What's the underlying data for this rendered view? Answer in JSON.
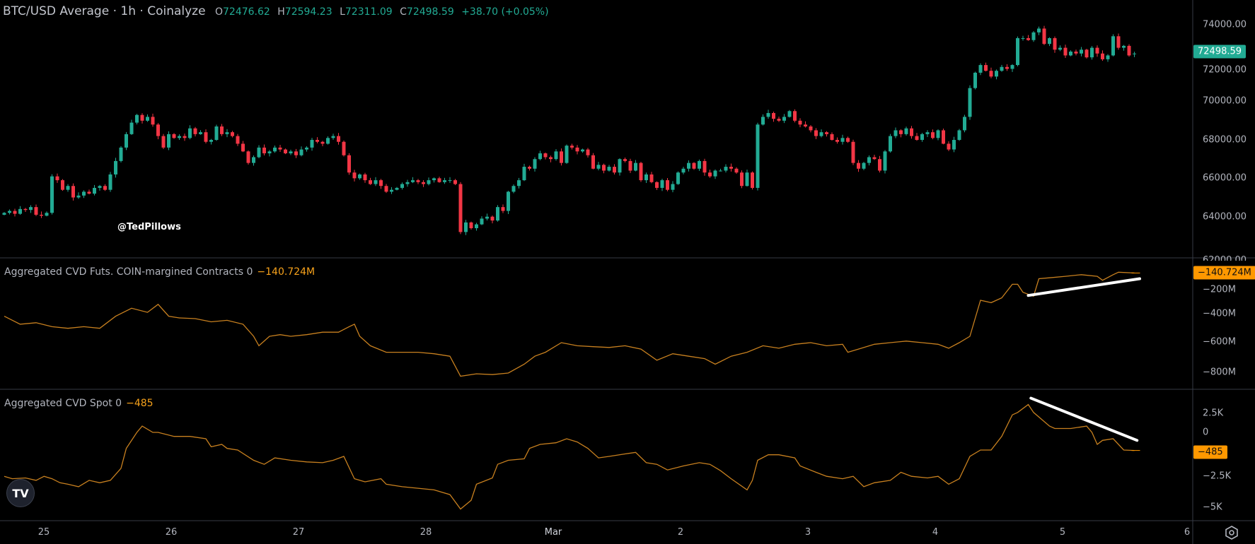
{
  "header": {
    "symbol": "BTC/USD Average · 1h · Coinalyze",
    "open_label": "O",
    "open": "72476.62",
    "high_label": "H",
    "high": "72594.23",
    "low_label": "L",
    "low": "72311.09",
    "close_label": "C",
    "close": "72498.59",
    "change": "+38.70 (+0.05%)"
  },
  "watermark": "@TedPillows",
  "colors": {
    "up": "#22ab94",
    "down": "#f23645",
    "cvd": "#c8801f",
    "tag_orange": "#ff9800",
    "annotation": "#ffffff"
  },
  "panes": {
    "futures": {
      "name": "Aggregated CVD Futs. COIN-margined Contracts 0",
      "value": "−140.724M"
    },
    "spot": {
      "name": "Aggregated CVD Spot 0",
      "value": "−485"
    }
  },
  "axes": {
    "price_ticks": [
      "74000.00",
      "72000.00",
      "70000.00",
      "68000.00",
      "66000.00",
      "64000.00",
      "62000.00"
    ],
    "price_tag": "72498.59",
    "futures_ticks": [
      "−200M",
      "−400M",
      "−600M",
      "−800M"
    ],
    "futures_tag": "−140.724M",
    "spot_ticks": [
      "2.5K",
      "0",
      "−2.5K",
      "−5K"
    ],
    "spot_tag": "−485",
    "time_labels": [
      "25",
      "26",
      "27",
      "28",
      "Mar",
      "2",
      "3",
      "4",
      "5",
      "6"
    ]
  },
  "chart_data": [
    {
      "type": "candlestick",
      "title": "BTC/USD Average · 1h",
      "ylim": [
        62000,
        74000
      ],
      "first_open": 64100,
      "last_ohlc": [
        72476.62,
        72594.23,
        72311.09,
        72498.59
      ],
      "closes": [
        64200,
        64300,
        64150,
        64400,
        64350,
        64500,
        64100,
        64050,
        64200,
        66100,
        65900,
        65400,
        65600,
        65000,
        65100,
        65300,
        65200,
        65500,
        65600,
        65400,
        66200,
        66900,
        67600,
        68300,
        68900,
        69300,
        69000,
        69200,
        68800,
        68200,
        67600,
        68300,
        68100,
        68200,
        68100,
        68600,
        68300,
        68400,
        67900,
        68000,
        68700,
        68300,
        68400,
        68200,
        67800,
        67400,
        66800,
        67100,
        67600,
        67300,
        67400,
        67600,
        67500,
        67300,
        67400,
        67200,
        67500,
        67600,
        68000,
        67900,
        67800,
        68100,
        68200,
        67900,
        67200,
        66300,
        66000,
        66200,
        65900,
        65700,
        65900,
        65600,
        65300,
        65400,
        65500,
        65700,
        65800,
        65900,
        65800,
        65700,
        65900,
        66000,
        65800,
        65900,
        65900,
        65700,
        63200,
        63700,
        63400,
        63600,
        63900,
        64000,
        63800,
        64500,
        64300,
        65300,
        65600,
        65900,
        66600,
        66500,
        67000,
        67300,
        67100,
        67000,
        67400,
        66800,
        67700,
        67600,
        67400,
        67500,
        67200,
        66500,
        66700,
        66400,
        66600,
        66300,
        67000,
        66900,
        66400,
        66800,
        65900,
        66200,
        65800,
        65500,
        65900,
        65400,
        65700,
        66300,
        66500,
        66800,
        66500,
        66900,
        66300,
        66100,
        66400,
        66400,
        66600,
        66500,
        66300,
        65600,
        66300,
        65500,
        68800,
        69200,
        69400,
        69100,
        69000,
        69200,
        69500,
        69000,
        68800,
        68700,
        68500,
        68200,
        68400,
        68300,
        68000,
        67900,
        68100,
        67900,
        66800,
        66500,
        66800,
        67100,
        67000,
        66400,
        67400,
        68200,
        68500,
        68300,
        68600,
        68200,
        68000,
        68300,
        68400,
        68100,
        68500,
        67800,
        67500,
        68000,
        68500,
        69200,
        70700,
        71500,
        71900,
        71600,
        71300,
        71600,
        71800,
        71700,
        71900,
        73300,
        73300,
        73200,
        73600,
        73800,
        73000,
        73300,
        72700,
        72800,
        72400,
        72600,
        72500,
        72700,
        72300,
        72800,
        72500,
        72200,
        72400,
        73400,
        72800,
        72900,
        72400,
        72498.59
      ]
    },
    {
      "type": "line",
      "title": "Aggregated CVD Futs. COIN-margined Contracts",
      "unit": "M",
      "ylim": [
        -850,
        -130
      ],
      "points": [
        [
          0,
          -428
        ],
        [
          3,
          -481
        ],
        [
          6,
          -471
        ],
        [
          9,
          -497
        ],
        [
          12,
          -508
        ],
        [
          15,
          -497
        ],
        [
          18,
          -508
        ],
        [
          21,
          -428
        ],
        [
          24,
          -375
        ],
        [
          27,
          -402
        ],
        [
          29,
          -349
        ],
        [
          31,
          -428
        ],
        [
          33,
          -439
        ],
        [
          36,
          -444
        ],
        [
          39,
          -465
        ],
        [
          42,
          -455
        ],
        [
          45,
          -481
        ],
        [
          47,
          -561
        ],
        [
          48,
          -624
        ],
        [
          50,
          -561
        ],
        [
          52,
          -550
        ],
        [
          54,
          -561
        ],
        [
          57,
          -550
        ],
        [
          60,
          -534
        ],
        [
          63,
          -534
        ],
        [
          65,
          -497
        ],
        [
          66,
          -481
        ],
        [
          67,
          -561
        ],
        [
          69,
          -624
        ],
        [
          72,
          -667
        ],
        [
          75,
          -667
        ],
        [
          78,
          -667
        ],
        [
          81,
          -677
        ],
        [
          84,
          -693
        ],
        [
          86,
          -826
        ],
        [
          89,
          -810
        ],
        [
          92,
          -815
        ],
        [
          95,
          -805
        ],
        [
          98,
          -746
        ],
        [
          100,
          -693
        ],
        [
          102,
          -667
        ],
        [
          105,
          -603
        ],
        [
          108,
          -624
        ],
        [
          111,
          -630
        ],
        [
          114,
          -635
        ],
        [
          117,
          -624
        ],
        [
          120,
          -646
        ],
        [
          123,
          -720
        ],
        [
          126,
          -677
        ],
        [
          129,
          -693
        ],
        [
          132,
          -709
        ],
        [
          134,
          -746
        ],
        [
          137,
          -693
        ],
        [
          140,
          -667
        ],
        [
          143,
          -624
        ],
        [
          146,
          -640
        ],
        [
          149,
          -614
        ],
        [
          152,
          -603
        ],
        [
          155,
          -624
        ],
        [
          158,
          -614
        ],
        [
          159,
          -667
        ],
        [
          161,
          -646
        ],
        [
          164,
          -614
        ],
        [
          167,
          -603
        ],
        [
          170,
          -593
        ],
        [
          173,
          -603
        ],
        [
          176,
          -614
        ],
        [
          178,
          -640
        ],
        [
          180,
          -603
        ],
        [
          182,
          -561
        ],
        [
          184,
          -322
        ],
        [
          186,
          -338
        ],
        [
          188,
          -306
        ],
        [
          190,
          -216
        ],
        [
          191,
          -216
        ],
        [
          192,
          -269
        ],
        [
          194,
          -295
        ],
        [
          195,
          -179
        ],
        [
          197,
          -173
        ],
        [
          200,
          -163
        ],
        [
          203,
          -152
        ],
        [
          206,
          -163
        ],
        [
          207,
          -189
        ],
        [
          209,
          -152
        ],
        [
          210,
          -136
        ],
        [
          213,
          -141
        ]
      ],
      "trendline": [
        [
          193,
          -290
        ],
        [
          214,
          -179
        ]
      ]
    },
    {
      "type": "line",
      "title": "Aggregated CVD Spot",
      "ylim": [
        -6000,
        4500
      ],
      "points": [
        [
          0,
          -2550
        ],
        [
          1.5,
          -2740
        ],
        [
          4,
          -2680
        ],
        [
          6,
          -2870
        ],
        [
          7.5,
          -2550
        ],
        [
          9,
          -2740
        ],
        [
          10.5,
          -3060
        ],
        [
          12,
          -3180
        ],
        [
          14,
          -3380
        ],
        [
          16,
          -2870
        ],
        [
          18,
          -3060
        ],
        [
          20,
          -2870
        ],
        [
          22,
          -1910
        ],
        [
          23,
          -320
        ],
        [
          25,
          960
        ],
        [
          26,
          1460
        ],
        [
          28,
          960
        ],
        [
          29,
          960
        ],
        [
          32,
          640
        ],
        [
          35,
          640
        ],
        [
          38,
          450
        ],
        [
          39,
          -190
        ],
        [
          41,
          0
        ],
        [
          42,
          -320
        ],
        [
          44,
          -450
        ],
        [
          47,
          -1270
        ],
        [
          49,
          -1590
        ],
        [
          51,
          -1080
        ],
        [
          54,
          -1270
        ],
        [
          57,
          -1400
        ],
        [
          60,
          -1460
        ],
        [
          62,
          -1270
        ],
        [
          64,
          -960
        ],
        [
          66,
          -2740
        ],
        [
          68,
          -2990
        ],
        [
          71,
          -2740
        ],
        [
          72,
          -3180
        ],
        [
          75,
          -3380
        ],
        [
          78,
          -3500
        ],
        [
          81,
          -3630
        ],
        [
          84,
          -4010
        ],
        [
          86,
          -5160
        ],
        [
          88,
          -4460
        ],
        [
          89,
          -3180
        ],
        [
          92,
          -2680
        ],
        [
          93,
          -1590
        ],
        [
          95,
          -1270
        ],
        [
          98,
          -1150
        ],
        [
          99,
          -320
        ],
        [
          101,
          0
        ],
        [
          104,
          130
        ],
        [
          106,
          450
        ],
        [
          108,
          190
        ],
        [
          110,
          -320
        ],
        [
          112,
          -1080
        ],
        [
          114,
          -960
        ],
        [
          117,
          -760
        ],
        [
          119,
          -640
        ],
        [
          121,
          -1460
        ],
        [
          123,
          -1590
        ],
        [
          125,
          -2040
        ],
        [
          128,
          -1720
        ],
        [
          131,
          -1460
        ],
        [
          133,
          -1590
        ],
        [
          135,
          -2100
        ],
        [
          137,
          -2740
        ],
        [
          140,
          -3630
        ],
        [
          141,
          -2870
        ],
        [
          142,
          -1270
        ],
        [
          144,
          -830
        ],
        [
          146,
          -830
        ],
        [
          149,
          -1080
        ],
        [
          150,
          -1720
        ],
        [
          153,
          -2230
        ],
        [
          155,
          -2550
        ],
        [
          158,
          -2740
        ],
        [
          160,
          -2550
        ],
        [
          162,
          -3380
        ],
        [
          164,
          -3060
        ],
        [
          167,
          -2870
        ],
        [
          169,
          -2230
        ],
        [
          171,
          -2550
        ],
        [
          174,
          -2680
        ],
        [
          176,
          -2550
        ],
        [
          178,
          -3180
        ],
        [
          180,
          -2740
        ],
        [
          182,
          -960
        ],
        [
          184,
          -450
        ],
        [
          186,
          -450
        ],
        [
          188,
          640
        ],
        [
          190,
          2360
        ],
        [
          191,
          2550
        ],
        [
          193,
          3180
        ],
        [
          194,
          2550
        ],
        [
          197,
          1460
        ],
        [
          198,
          1270
        ],
        [
          201,
          1270
        ],
        [
          204,
          1460
        ],
        [
          205,
          960
        ],
        [
          206,
          0
        ],
        [
          207,
          320
        ],
        [
          209,
          450
        ],
        [
          211,
          -450
        ],
        [
          213,
          -485
        ]
      ],
      "trendline": [
        [
          193.5,
          3690
        ],
        [
          213.5,
          320
        ]
      ]
    }
  ]
}
